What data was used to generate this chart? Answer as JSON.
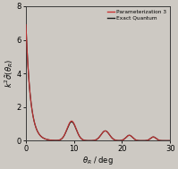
{
  "xlabel": "$\\theta_R$ / deg",
  "ylabel": "$k^2\\tilde{\\sigma}(\\theta_R)$",
  "xlim": [
    0,
    30
  ],
  "ylim": [
    0,
    8
  ],
  "yticks": [
    0,
    2,
    4,
    6,
    8
  ],
  "xticks": [
    0,
    10,
    20,
    30
  ],
  "legend": [
    "Parameterization 3",
    "Exact Quantum"
  ],
  "red_color": "#cc3333",
  "black_color": "#1a1a1a",
  "bg_color": "#cdc9c3",
  "figsize": [
    1.99,
    1.89
  ],
  "dpi": 100
}
